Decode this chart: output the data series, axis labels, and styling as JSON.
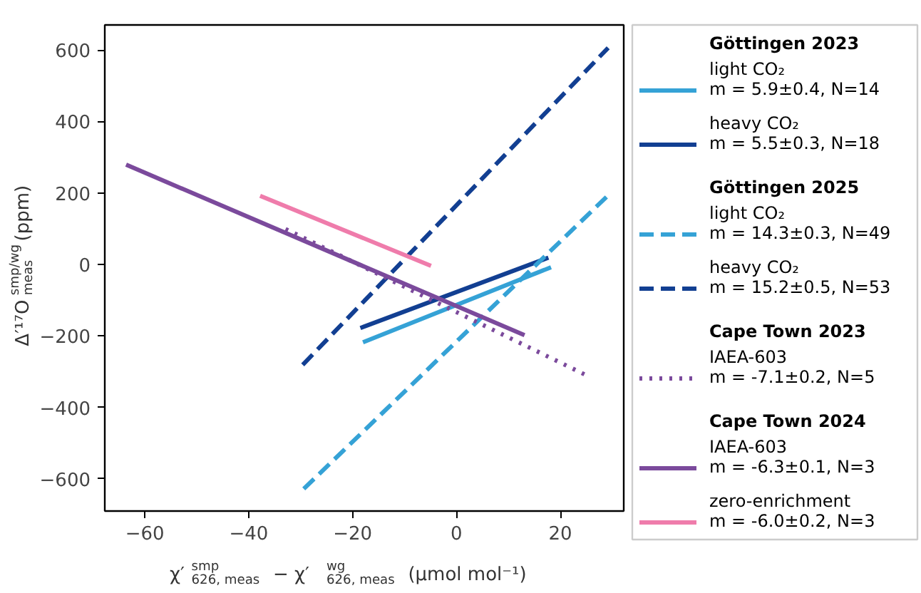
{
  "chart_data": {
    "type": "line",
    "xlabel": "χ′$^{smp}$$_{626, meas}$ − χ′$^{wg}$$_{626, meas}$ (µmol mol⁻¹)",
    "ylabel": "Δ′¹⁷O$^{smp/wg}$$_{meas}$ (ppm)",
    "xlim": [
      -67.7,
      32.2
    ],
    "ylim": [
      -690,
      670
    ],
    "xticks": [
      {
        "value": -60,
        "label": "−60"
      },
      {
        "value": -40,
        "label": "−40"
      },
      {
        "value": -20,
        "label": "−20"
      },
      0,
      20
    ],
    "yticks": [
      {
        "value": -600,
        "label": "−600"
      },
      {
        "value": -400,
        "label": "−400"
      },
      {
        "value": -200,
        "label": "−200"
      },
      0,
      200,
      400,
      600
    ],
    "grid": false,
    "legend": "right",
    "annotations": [
      "Göttingen 2023",
      "Göttingen 2025",
      "Cape Town 2023",
      "Cape Town 2024"
    ],
    "series": [
      {
        "name": "light CO₂\nm = 5.9±0.4, N=14",
        "color": "#35a2d6",
        "line_style": "solid",
        "x": [
          -18.0,
          18.2
        ],
        "values": [
          -218,
          -8
        ]
      },
      {
        "name": "heavy CO₂\nm = 5.5±0.3, N=18",
        "color": "#123f92",
        "line_style": "solid",
        "x": [
          -18.5,
          17.7
        ],
        "values": [
          -178,
          19
        ]
      },
      {
        "name": "light CO₂\nm = 14.3±0.3, N=49",
        "color": "#35a2d6",
        "line_style": "dashed",
        "x": [
          -29.4,
          29.6
        ],
        "values": [
          -628,
          199
        ]
      },
      {
        "name": "heavy CO₂\nm = 15.2±0.5, N=53",
        "color": "#123f92",
        "line_style": "dashed",
        "x": [
          -29.6,
          29.2
        ],
        "values": [
          -281,
          606
        ]
      },
      {
        "name": "IAEA-603\nm = -7.1±0.2, N=5",
        "color": "#7b4a9c",
        "line_style": "dotted",
        "x": [
          -32.9,
          25.7
        ],
        "values": [
          99,
          -315
        ]
      },
      {
        "name": "IAEA-603\nm = -6.3±0.1, N=3",
        "color": "#7b4a9c",
        "line_style": "solid",
        "x": [
          -63.6,
          13.1
        ],
        "values": [
          279,
          -198
        ]
      },
      {
        "name": "zero-enrichment\nm = -6.0±0.2, N=3",
        "color": "#ef7cab",
        "line_style": "solid",
        "x": [
          -37.8,
          -4.9
        ],
        "values": [
          192,
          -4
        ]
      }
    ]
  }
}
